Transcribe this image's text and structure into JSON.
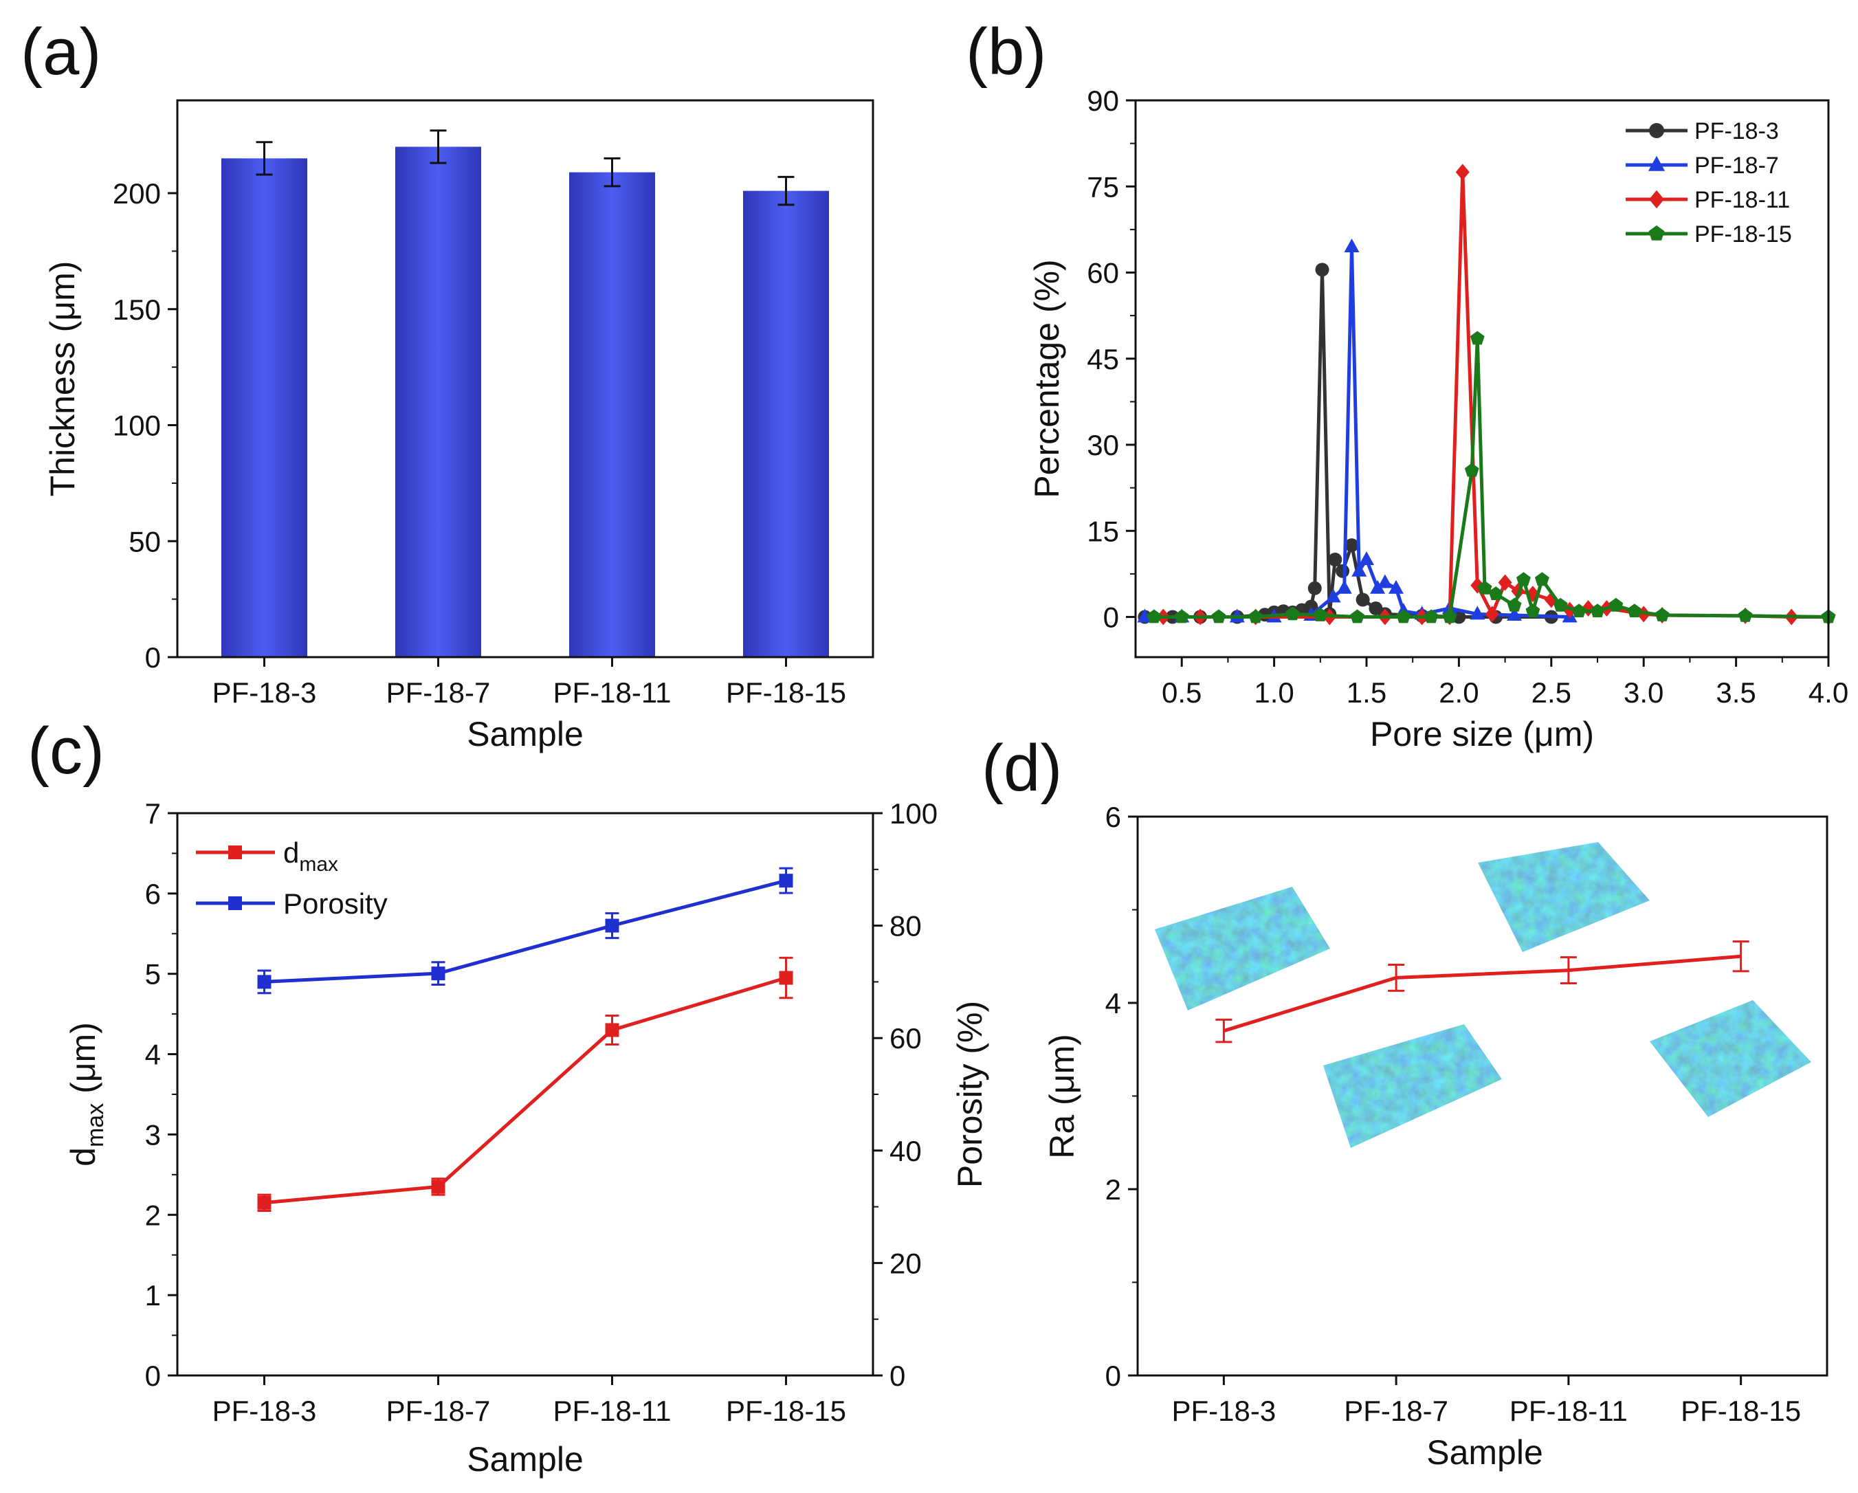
{
  "figure": {
    "panels": [
      "(a)",
      "(b)",
      "(c)",
      "(d)"
    ]
  },
  "chart_data": [
    {
      "panel": "(a)",
      "type": "bar",
      "title": "",
      "xlabel": "Sample",
      "ylabel": "Thickness (μm)",
      "categories": [
        "PF-18-3",
        "PF-18-7",
        "PF-18-11",
        "PF-18-15"
      ],
      "values": [
        215,
        220,
        209,
        201
      ],
      "errors": [
        7,
        7,
        6,
        6
      ],
      "ylim": [
        0,
        240
      ],
      "yticks": [
        0,
        50,
        100,
        150,
        200
      ],
      "bar_color": "#3a45d8"
    },
    {
      "panel": "(b)",
      "type": "line",
      "title": "",
      "xlabel": "Pore size (μm)",
      "ylabel": "Percentage (%)",
      "xlim": [
        0.25,
        4.0
      ],
      "ylim": [
        -7,
        90
      ],
      "xticks": [
        0.5,
        1.0,
        1.5,
        2.0,
        2.5,
        3.0,
        3.5,
        4.0
      ],
      "xtick_labels": [
        "0.5",
        "1.0",
        "1.5",
        "2.0",
        "2.5",
        "3.0",
        "3.5",
        "4.0"
      ],
      "yticks": [
        0,
        15,
        30,
        45,
        60,
        75,
        90
      ],
      "legend": "top-right",
      "series": [
        {
          "name": "PF-18-3",
          "color": "#333333",
          "marker": "circle",
          "points": [
            [
              0.3,
              0
            ],
            [
              0.45,
              0
            ],
            [
              0.6,
              0
            ],
            [
              0.8,
              0
            ],
            [
              0.95,
              0.4
            ],
            [
              1.0,
              0.8
            ],
            [
              1.05,
              1.0
            ],
            [
              1.1,
              0.8
            ],
            [
              1.15,
              1.2
            ],
            [
              1.2,
              1.8
            ],
            [
              1.22,
              5
            ],
            [
              1.26,
              60.5
            ],
            [
              1.3,
              0.5
            ],
            [
              1.33,
              10
            ],
            [
              1.37,
              8
            ],
            [
              1.42,
              12.5
            ],
            [
              1.48,
              3
            ],
            [
              1.55,
              1.5
            ],
            [
              1.6,
              0.5
            ],
            [
              1.8,
              0.2
            ],
            [
              2.0,
              0
            ],
            [
              2.2,
              0
            ],
            [
              2.5,
              0
            ]
          ]
        },
        {
          "name": "PF-18-7",
          "color": "#1f3ee0",
          "marker": "triangle",
          "points": [
            [
              0.3,
              0
            ],
            [
              0.5,
              0
            ],
            [
              0.8,
              0
            ],
            [
              1.0,
              0
            ],
            [
              1.2,
              0.3
            ],
            [
              1.32,
              3.5
            ],
            [
              1.38,
              5
            ],
            [
              1.42,
              64.5
            ],
            [
              1.46,
              8
            ],
            [
              1.5,
              10
            ],
            [
              1.56,
              5
            ],
            [
              1.6,
              6
            ],
            [
              1.66,
              5
            ],
            [
              1.7,
              1
            ],
            [
              1.8,
              0.5
            ],
            [
              1.95,
              1.5
            ],
            [
              2.1,
              0.5
            ],
            [
              2.3,
              0.3
            ],
            [
              2.6,
              0
            ]
          ]
        },
        {
          "name": "PF-18-11",
          "color": "#e01f1f",
          "marker": "diamond",
          "points": [
            [
              0.4,
              0
            ],
            [
              0.6,
              0
            ],
            [
              0.9,
              0
            ],
            [
              1.3,
              0
            ],
            [
              1.6,
              0
            ],
            [
              1.8,
              0
            ],
            [
              1.95,
              0
            ],
            [
              2.02,
              77.5
            ],
            [
              2.1,
              5.5
            ],
            [
              2.18,
              0.5
            ],
            [
              2.25,
              6
            ],
            [
              2.32,
              4.5
            ],
            [
              2.4,
              4
            ],
            [
              2.5,
              3
            ],
            [
              2.6,
              1.2
            ],
            [
              2.7,
              1.5
            ],
            [
              2.8,
              1.5
            ],
            [
              3.0,
              0.5
            ],
            [
              3.1,
              0.3
            ],
            [
              3.55,
              0.2
            ],
            [
              3.8,
              0
            ],
            [
              4.0,
              0
            ]
          ]
        },
        {
          "name": "PF-18-15",
          "color": "#1a7a1a",
          "marker": "pentagon",
          "points": [
            [
              0.35,
              0
            ],
            [
              0.5,
              0
            ],
            [
              0.7,
              0
            ],
            [
              0.9,
              0
            ],
            [
              1.1,
              0.5
            ],
            [
              1.25,
              0.3
            ],
            [
              1.45,
              0
            ],
            [
              1.7,
              0
            ],
            [
              1.85,
              0
            ],
            [
              1.95,
              0
            ],
            [
              2.07,
              25.5
            ],
            [
              2.1,
              48.5
            ],
            [
              2.14,
              5
            ],
            [
              2.2,
              4
            ],
            [
              2.3,
              2
            ],
            [
              2.35,
              6.5
            ],
            [
              2.4,
              1
            ],
            [
              2.45,
              6.5
            ],
            [
              2.55,
              2
            ],
            [
              2.65,
              1
            ],
            [
              2.75,
              1
            ],
            [
              2.85,
              2
            ],
            [
              2.95,
              1
            ],
            [
              3.1,
              0.3
            ],
            [
              3.55,
              0.2
            ],
            [
              4.0,
              0
            ]
          ]
        }
      ]
    },
    {
      "panel": "(c)",
      "type": "line",
      "title": "",
      "xlabel": "Sample",
      "ylabel": "d_max (μm)",
      "ylabel_main": "d",
      "ylabel_sub": "max",
      "ylabel_unit": " (μm)",
      "ylabel_right": "Porosity (%)",
      "categories": [
        "PF-18-3",
        "PF-18-7",
        "PF-18-11",
        "PF-18-15"
      ],
      "ylim": [
        0,
        7
      ],
      "yticks": [
        0,
        1,
        2,
        3,
        4,
        5,
        6,
        7
      ],
      "ylim_right": [
        0,
        100
      ],
      "yticks_right": [
        0,
        20,
        40,
        60,
        80,
        100
      ],
      "legend": "top-left",
      "series": [
        {
          "name": "dmax",
          "legend_main": "d",
          "legend_sub": "max",
          "color": "#e01f1f",
          "axis": "left",
          "values": [
            2.15,
            2.35,
            4.3,
            4.95
          ],
          "errors": [
            0.1,
            0.1,
            0.18,
            0.25
          ]
        },
        {
          "name": "Porosity",
          "legend_main": "Porosity",
          "legend_sub": "",
          "color": "#1f2fd0",
          "axis": "right",
          "values": [
            70,
            71.5,
            80,
            88
          ],
          "errors": [
            2,
            2,
            2.2,
            2.2
          ]
        }
      ]
    },
    {
      "panel": "(d)",
      "type": "line",
      "title": "",
      "xlabel": "Sample",
      "ylabel": "Ra (μm)",
      "categories": [
        "PF-18-3",
        "PF-18-7",
        "PF-18-11",
        "PF-18-15"
      ],
      "ylim": [
        0,
        6
      ],
      "yticks": [
        0,
        2,
        4,
        6
      ],
      "series": [
        {
          "name": "Ra",
          "color": "#e01f1f",
          "values": [
            3.7,
            4.27,
            4.35,
            4.5
          ],
          "errors": [
            0.12,
            0.14,
            0.14,
            0.16
          ]
        }
      ],
      "insets": [
        "surface-topography-PF-18-3",
        "surface-topography-PF-18-7",
        "surface-topography-PF-18-11",
        "surface-topography-PF-18-15"
      ]
    }
  ]
}
